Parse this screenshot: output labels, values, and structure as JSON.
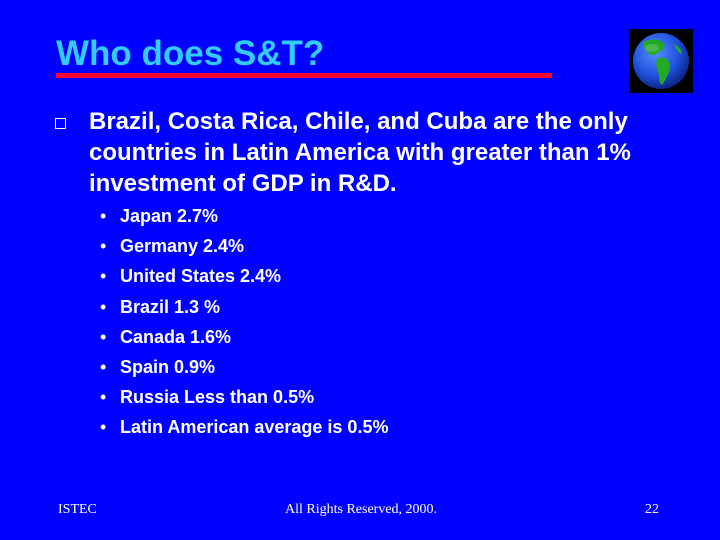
{
  "slide": {
    "title": "Who does S&T?",
    "main_point": "Brazil, Costa Rica, Chile, and Cuba are the only countries in Latin America with greater than 1% investment of GDP in R&D.",
    "bullet_glyph": "•",
    "sub_points": [
      "Japan 2.7%",
      "Germany 2.4%",
      "United States 2.4%",
      "Brazil 1.3 %",
      "Canada 1.6%",
      "Spain 0.9%",
      "Russia Less than 0.5%",
      "Latin American average is 0.5%"
    ]
  },
  "footer": {
    "left": "ISTEC",
    "center": "All Rights Reserved, 2000.",
    "page_number": "22"
  },
  "icons": {
    "globe": "globe-icon",
    "main_bullet": "hollow-square-bullet-icon"
  },
  "colors": {
    "background": "#0000FF",
    "title": "#33CCFF",
    "title_rule": "#FF0033",
    "text": "#FFFFFF",
    "globe_land": "#22AA22",
    "globe_ocean": "#1E50DC"
  }
}
